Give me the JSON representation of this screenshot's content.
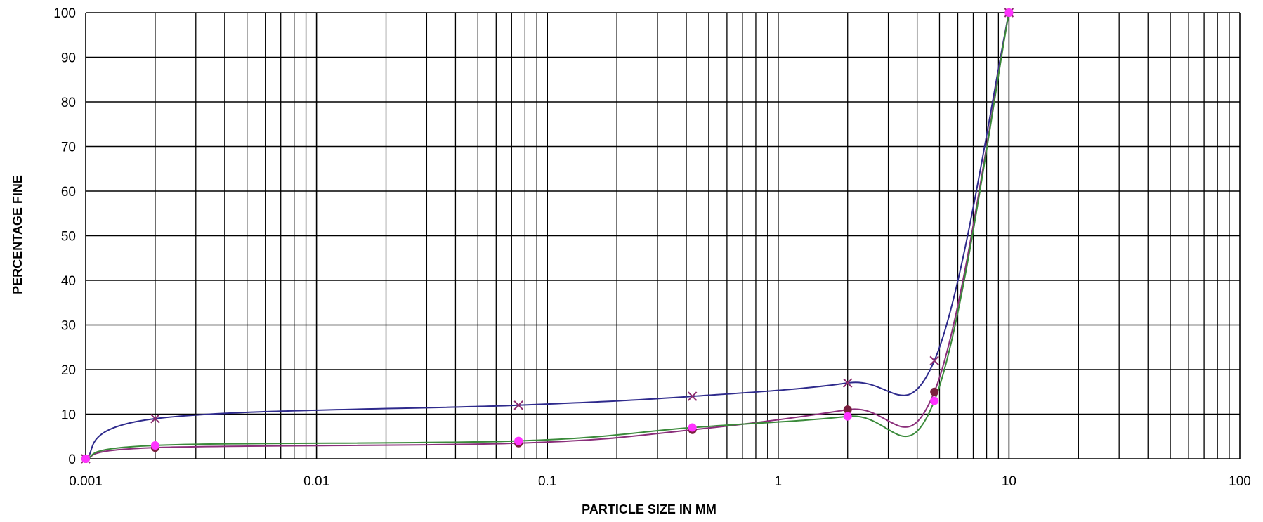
{
  "chart_data": {
    "type": "line",
    "title": "",
    "xlabel": "PARTICLE SIZE IN MM",
    "ylabel": "PERCENTAGE FINE",
    "x_scale": "log",
    "xlim": [
      0.001,
      100
    ],
    "ylim": [
      0,
      100
    ],
    "grid": true,
    "legend": "none",
    "x_tick_labels": [
      "0.001",
      "0.01",
      "0.1",
      "1",
      "10",
      "100"
    ],
    "y_tick_labels": [
      "0",
      "10",
      "20",
      "30",
      "40",
      "50",
      "60",
      "70",
      "80",
      "90",
      "100"
    ],
    "series": [
      {
        "color": "#2e2a8c",
        "marker": "x",
        "marker_color": "#8b2a6e",
        "x": [
          0.001,
          0.002,
          0.075,
          0.425,
          2,
          4.75,
          10
        ],
        "y": [
          0,
          9,
          12,
          14,
          17,
          22,
          100
        ]
      },
      {
        "color": "#8a2e7a",
        "marker": "circle",
        "marker_color": "#7a1e3e",
        "x": [
          0.001,
          0.002,
          0.075,
          0.425,
          2,
          4.75,
          10
        ],
        "y": [
          0,
          2.5,
          3.5,
          6.5,
          11,
          15,
          100
        ]
      },
      {
        "color": "#3a8a3a",
        "marker": "circle",
        "marker_color": "#ff33ff",
        "x": [
          0.001,
          0.002,
          0.075,
          0.425,
          2,
          4.75,
          10
        ],
        "y": [
          0,
          3,
          4,
          7,
          9.5,
          13,
          100
        ]
      }
    ]
  }
}
